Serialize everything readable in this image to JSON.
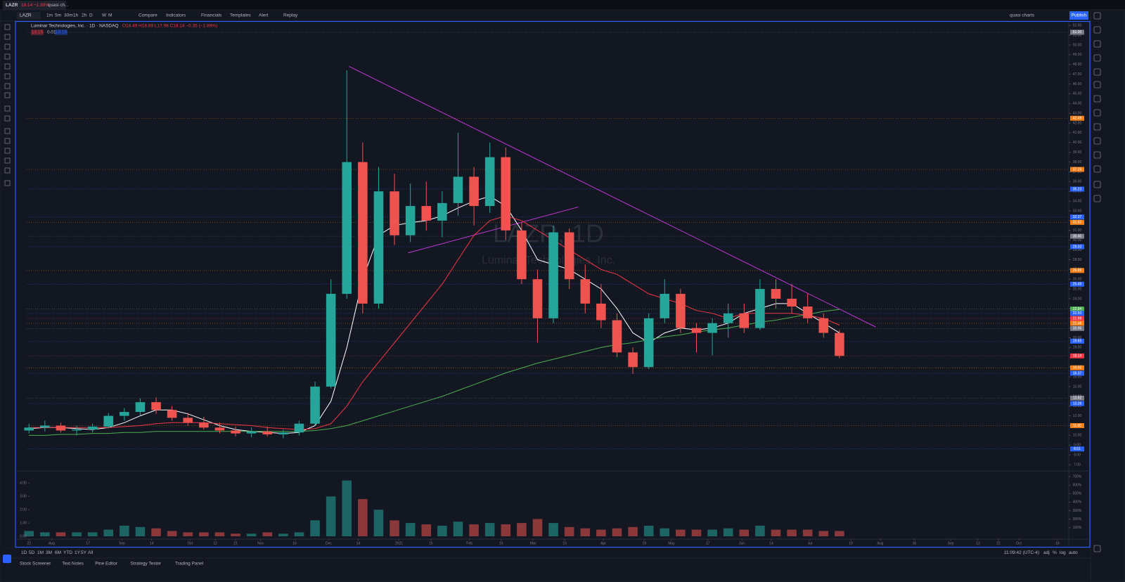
{
  "tab": {
    "symbol": "LAZR",
    "price": "18.14",
    "change": "−1.89%",
    "layout": "quasi ch..."
  },
  "toolbar": {
    "symbol": "LAZR",
    "intervals": [
      "1m",
      "5m",
      "30m",
      "1h",
      "2h",
      "D",
      "W",
      "M"
    ],
    "buttons": [
      "Compare",
      "Indicators",
      "Financials",
      "Templates",
      "Alert",
      "Replay"
    ],
    "layout": "quasi charts",
    "publish": "Publish"
  },
  "legend": {
    "name": "Luminar Technologies, Inc. · 1D · NASDAQ",
    "ohlc": "O18.49 H18.69 L17.98 C18.14 −0.35 (−1.89%)",
    "bid": "18.15",
    "spread": "0.01",
    "ask": "18.16"
  },
  "watermark": {
    "symbol": "LAZR, 1D",
    "name": "Luminar Technologies, Inc."
  },
  "chart_data": {
    "type": "candlestick",
    "up_color": "#26a69a",
    "down_color": "#ef5350",
    "x": [
      0,
      7,
      14,
      21,
      28,
      35,
      42,
      49,
      56,
      63,
      70,
      77,
      84,
      91,
      98,
      105,
      112,
      119,
      126,
      133,
      140,
      147,
      154,
      161,
      168,
      175,
      182,
      189,
      196,
      203,
      210,
      217,
      224,
      231,
      238,
      245,
      252,
      259,
      266,
      273,
      280,
      287,
      294,
      301,
      308,
      315,
      322,
      329,
      336,
      343,
      350,
      357
    ],
    "open": [
      10.5,
      10.8,
      11.0,
      10.5,
      10.6,
      10.9,
      12.0,
      12.4,
      13.4,
      12.6,
      11.8,
      11.3,
      10.8,
      10.5,
      10.2,
      10.4,
      10.1,
      10.3,
      11.2,
      15.0,
      24.5,
      38.0,
      23.5,
      35.0,
      30.5,
      33.5,
      32.0,
      33.8,
      36.5,
      33.5,
      38.5,
      31.0,
      26.0,
      22.0,
      30.8,
      26.0,
      23.5,
      21.8,
      18.5,
      17.0,
      22.0,
      24.5,
      21.0,
      20.5,
      21.5,
      22.5,
      21.0,
      25.0,
      24.0,
      23.2,
      22.0,
      20.5
    ],
    "high": [
      11.2,
      11.5,
      11.3,
      11.0,
      11.2,
      12.3,
      12.8,
      13.8,
      13.9,
      13.0,
      12.3,
      11.9,
      11.3,
      10.9,
      10.8,
      10.9,
      10.6,
      11.5,
      15.5,
      26.0,
      47.4,
      40.0,
      37.5,
      36.8,
      35.8,
      36.0,
      35.0,
      41.0,
      37.5,
      40.0,
      39.5,
      31.8,
      27.0,
      31.5,
      31.2,
      27.5,
      25.5,
      22.5,
      19.0,
      22.5,
      26.0,
      25.0,
      21.5,
      22.0,
      23.5,
      23.5,
      26.0,
      26.0,
      25.5,
      24.5,
      22.5,
      20.8
    ],
    "low": [
      10.2,
      10.4,
      10.3,
      10.0,
      10.3,
      10.7,
      11.5,
      12.0,
      12.2,
      11.5,
      11.0,
      10.6,
      10.2,
      9.9,
      9.8,
      9.9,
      9.7,
      10.0,
      11.0,
      14.8,
      24.0,
      22.5,
      23.0,
      29.5,
      29.8,
      31.0,
      30.3,
      32.5,
      31.5,
      32.8,
      30.0,
      25.5,
      19.5,
      21.5,
      25.0,
      22.5,
      21.0,
      18.0,
      16.3,
      16.8,
      21.5,
      20.5,
      18.5,
      18.2,
      20.0,
      20.5,
      20.8,
      23.0,
      22.5,
      21.5,
      20.0,
      17.9
    ],
    "close": [
      10.8,
      11.0,
      10.5,
      10.6,
      10.9,
      12.0,
      12.4,
      13.4,
      12.6,
      11.8,
      11.3,
      10.8,
      10.5,
      10.2,
      10.4,
      10.1,
      10.3,
      11.2,
      15.0,
      24.5,
      38.0,
      23.5,
      35.0,
      30.5,
      33.5,
      32.0,
      33.8,
      36.5,
      33.5,
      38.5,
      31.0,
      26.0,
      22.0,
      30.8,
      26.0,
      23.5,
      21.8,
      18.5,
      17.0,
      22.0,
      24.5,
      21.0,
      20.5,
      21.5,
      22.5,
      21.0,
      25.0,
      24.0,
      23.2,
      22.0,
      20.5,
      18.14
    ],
    "series": [
      {
        "color": "#ffffff",
        "values": [
          10.7,
          10.8,
          10.8,
          10.7,
          10.6,
          10.8,
          11.3,
          12.0,
          12.6,
          12.6,
          12.2,
          11.6,
          11.0,
          10.6,
          10.4,
          10.3,
          10.2,
          10.3,
          11.0,
          13.5,
          19.0,
          26.0,
          30.5,
          31.5,
          31.8,
          32.0,
          32.5,
          33.3,
          34.0,
          34.5,
          33.5,
          31.0,
          28.0,
          27.5,
          27.0,
          26.0,
          25.0,
          23.0,
          20.5,
          19.5,
          20.5,
          21.0,
          20.8,
          21.0,
          21.5,
          22.5,
          23.0,
          23.5,
          23.5,
          22.5,
          21.5,
          20.5
        ]
      },
      {
        "color": "#f23645",
        "values": [
          10.8,
          10.8,
          10.8,
          10.8,
          10.8,
          10.8,
          10.9,
          11.0,
          11.2,
          11.3,
          11.3,
          11.3,
          11.2,
          11.1,
          11.0,
          10.8,
          10.7,
          10.6,
          10.7,
          11.2,
          13.0,
          15.5,
          17.5,
          19.5,
          21.5,
          23.5,
          25.5,
          28.0,
          30.5,
          32.0,
          32.5,
          32.0,
          31.0,
          30.0,
          29.0,
          28.0,
          27.0,
          26.5,
          25.5,
          24.5,
          24.0,
          23.5,
          22.8,
          22.5,
          22.0,
          22.5,
          22.5,
          22.5,
          22.5,
          22.3,
          22.0,
          21.3
        ]
      },
      {
        "color": "#4caf50",
        "values": [
          10.0,
          10.0,
          10.1,
          10.1,
          10.2,
          10.2,
          10.3,
          10.3,
          10.4,
          10.4,
          10.4,
          10.4,
          10.4,
          10.4,
          10.4,
          10.4,
          10.4,
          10.4,
          10.5,
          10.7,
          11.0,
          11.5,
          12.0,
          12.5,
          13.0,
          13.5,
          14.0,
          14.6,
          15.2,
          15.8,
          16.4,
          16.9,
          17.4,
          17.8,
          18.2,
          18.6,
          19.0,
          19.3,
          19.5,
          19.8,
          20.1,
          20.3,
          20.6,
          20.8,
          21.0,
          21.3,
          21.6,
          21.8,
          22.1,
          22.4,
          22.7,
          22.9
        ]
      }
    ],
    "xlim": [
      -1,
      458
    ],
    "xticks": [
      {
        "value": 0,
        "label": "22"
      },
      {
        "value": 10,
        "label": "Aug"
      },
      {
        "value": 26,
        "label": "17"
      },
      {
        "value": 41,
        "label": "Sep"
      },
      {
        "value": 54,
        "label": "14"
      },
      {
        "value": 71,
        "label": "Oct"
      },
      {
        "value": 82,
        "label": "12"
      },
      {
        "value": 91,
        "label": "21"
      },
      {
        "value": 102,
        "label": "Nov"
      },
      {
        "value": 117,
        "label": "16"
      },
      {
        "value": 132,
        "label": "Dec"
      },
      {
        "value": 145,
        "label": "14"
      },
      {
        "value": 163,
        "label": "2021"
      },
      {
        "value": 177,
        "label": "15"
      },
      {
        "value": 194,
        "label": "Feb"
      },
      {
        "value": 208,
        "label": "15"
      },
      {
        "value": 222,
        "label": "Mar"
      },
      {
        "value": 236,
        "label": "15"
      },
      {
        "value": 253,
        "label": "Apr"
      },
      {
        "value": 271,
        "label": "19"
      },
      {
        "value": 283,
        "label": "May"
      },
      {
        "value": 299,
        "label": "17"
      },
      {
        "value": 314,
        "label": "Jun"
      },
      {
        "value": 327,
        "label": "14"
      },
      {
        "value": 344,
        "label": "Jul"
      },
      {
        "value": 362,
        "label": "19"
      },
      {
        "value": 375,
        "label": "Aug"
      },
      {
        "value": 390,
        "label": "16"
      },
      {
        "value": 406,
        "label": "Sep"
      },
      {
        "value": 418,
        "label": "13"
      },
      {
        "value": 427,
        "label": "22"
      },
      {
        "value": 436,
        "label": "Oct"
      },
      {
        "value": 453,
        "label": "18"
      }
    ],
    "ylim": [
      6.5,
      52.3
    ],
    "yticks": [
      {
        "value": 52,
        "label": "52.00"
      },
      {
        "value": 51,
        "label": "51.00"
      },
      {
        "value": 50,
        "label": "50.00"
      },
      {
        "value": 49,
        "label": "49.00"
      },
      {
        "value": 48,
        "label": "48.00"
      },
      {
        "value": 47,
        "label": "47.00"
      },
      {
        "value": 46,
        "label": "46.00"
      },
      {
        "value": 45,
        "label": "45.00"
      },
      {
        "value": 44,
        "label": "44.00"
      },
      {
        "value": 43,
        "label": "43.00"
      },
      {
        "value": 42,
        "label": "42.00"
      },
      {
        "value": 41,
        "label": "41.00"
      },
      {
        "value": 40,
        "label": "40.00"
      },
      {
        "value": 39,
        "label": "39.00"
      },
      {
        "value": 38,
        "label": "38.00"
      },
      {
        "value": 37,
        "label": "37.00"
      },
      {
        "value": 36,
        "label": "36.00"
      },
      {
        "value": 35,
        "label": "35.00"
      },
      {
        "value": 34,
        "label": "34.00"
      },
      {
        "value": 33,
        "label": "33.00"
      },
      {
        "value": 32,
        "label": "32.00"
      },
      {
        "value": 31,
        "label": "31.00"
      },
      {
        "value": 30,
        "label": "30.00"
      },
      {
        "value": 29,
        "label": "29.00"
      },
      {
        "value": 28,
        "label": "28.00"
      },
      {
        "value": 27,
        "label": "27.00"
      },
      {
        "value": 26,
        "label": "26.00"
      },
      {
        "value": 25,
        "label": "25.00"
      },
      {
        "value": 24,
        "label": "24.00"
      },
      {
        "value": 23,
        "label": "23.00"
      },
      {
        "value": 22,
        "label": "22.00"
      },
      {
        "value": 21,
        "label": "21.00"
      },
      {
        "value": 20,
        "label": "20.00"
      },
      {
        "value": 19,
        "label": "19.00"
      },
      {
        "value": 18,
        "label": "18.00"
      },
      {
        "value": 17,
        "label": "17.00"
      },
      {
        "value": 16,
        "label": "16.00"
      },
      {
        "value": 15,
        "label": "15.00"
      },
      {
        "value": 14,
        "label": "14.00"
      },
      {
        "value": 13,
        "label": "13.00"
      },
      {
        "value": 12,
        "label": "12.00"
      },
      {
        "value": 11,
        "label": "11.00"
      },
      {
        "value": 10,
        "label": "10.00"
      },
      {
        "value": 9,
        "label": "9.00"
      },
      {
        "value": 8,
        "label": "8.00"
      },
      {
        "value": 7,
        "label": "7.00"
      }
    ],
    "grid": false,
    "price_labels": [
      {
        "value": 51.3,
        "label": "51.30",
        "color": "#787b86"
      },
      {
        "value": 42.49,
        "label": "42.49",
        "color": "#f57f17"
      },
      {
        "value": 37.25,
        "label": "37.25",
        "color": "#f57f17"
      },
      {
        "value": 35.23,
        "label": "35.23",
        "color": "#2962ff"
      },
      {
        "value": 32.37,
        "label": "32.37",
        "color": "#2962ff"
      },
      {
        "value": 31.82,
        "label": "31.82",
        "color": "#f57f17"
      },
      {
        "value": 30.4,
        "label": "30.40",
        "color": "#787b86"
      },
      {
        "value": 29.33,
        "label": "29.33",
        "color": "#2962ff"
      },
      {
        "value": 26.89,
        "label": "26.89",
        "color": "#f57f17"
      },
      {
        "value": 25.49,
        "label": "25.49",
        "color": "#2962ff"
      },
      {
        "value": 22.94,
        "label": "22.94",
        "color": "#4caf50"
      },
      {
        "value": 22.5,
        "label": "22.50",
        "color": "#2962ff"
      },
      {
        "value": 21.98,
        "label": "21.98",
        "color": "#f23645"
      },
      {
        "value": 21.48,
        "label": "21.48",
        "color": "#f57f17"
      },
      {
        "value": 20.95,
        "label": "20.95",
        "color": "#787b86"
      },
      {
        "value": 19.65,
        "label": "19.65",
        "color": "#2962ff"
      },
      {
        "value": 18.14,
        "label": "18.14",
        "color": "#f23645"
      },
      {
        "value": 16.92,
        "label": "16.92",
        "color": "#f57f17"
      },
      {
        "value": 16.37,
        "label": "16.37",
        "color": "#2962ff"
      },
      {
        "value": 13.82,
        "label": "13.82",
        "color": "#787b86"
      },
      {
        "value": 13.26,
        "label": "13.26",
        "color": "#2962ff"
      },
      {
        "value": 11,
        "label": "11.00",
        "color": "#f57f17"
      },
      {
        "value": 8.61,
        "label": "8.61",
        "color": "#2962ff"
      }
    ],
    "trendlines": [
      {
        "x": [
          141,
          373
        ],
        "y": [
          47.8,
          21.1
        ],
        "color": "#c037d6"
      },
      {
        "x": [
          167,
          242
        ],
        "y": [
          28.7,
          33.4
        ],
        "color": "#c037d6"
      }
    ],
    "volume": {
      "values": [
        0.4,
        0.3,
        0.3,
        0.3,
        0.3,
        0.5,
        0.8,
        0.7,
        0.6,
        0.4,
        0.3,
        0.3,
        0.3,
        0.2,
        0.2,
        0.3,
        0.2,
        0.3,
        1.2,
        3.0,
        4.2,
        2.8,
        2.0,
        1.2,
        1.0,
        0.9,
        0.8,
        1.1,
        0.9,
        1.0,
        0.9,
        1.0,
        1.3,
        1.0,
        0.7,
        0.6,
        0.5,
        0.6,
        0.7,
        0.8,
        0.6,
        0.5,
        0.5,
        0.5,
        0.6,
        0.5,
        0.8,
        0.5,
        0.5,
        0.5,
        0.4,
        0.4
      ],
      "ylim": [
        0,
        4.6
      ],
      "yticks": [
        {
          "value": 4,
          "label": "4.00"
        },
        {
          "value": 3,
          "label": "3.00"
        },
        {
          "value": 2,
          "label": "2.00"
        },
        {
          "value": 1,
          "label": "1.00"
        },
        {
          "value": 0,
          "label": "0.00"
        }
      ],
      "y2lim": [
        0,
        716
      ],
      "y2ticks": [
        {
          "value": 700,
          "label": "700%"
        },
        {
          "value": 600,
          "label": "600%"
        },
        {
          "value": 500,
          "label": "500%"
        },
        {
          "value": 400,
          "label": "400%"
        },
        {
          "value": 300,
          "label": "300%"
        },
        {
          "value": 200,
          "label": "200%"
        },
        {
          "value": 100,
          "label": "100%"
        }
      ]
    }
  },
  "bottom": {
    "ranges": [
      "1D",
      "5D",
      "1M",
      "3M",
      "6M",
      "YTD",
      "1Y",
      "5Y",
      "All"
    ],
    "time": "11:09:42 (UTC-4)",
    "scale": [
      "adj",
      "%",
      "log",
      "auto"
    ],
    "tabs": [
      "Stock Screener",
      "Text Notes",
      "Pine Editor",
      "Strategy Tester",
      "Trading Panel"
    ]
  }
}
